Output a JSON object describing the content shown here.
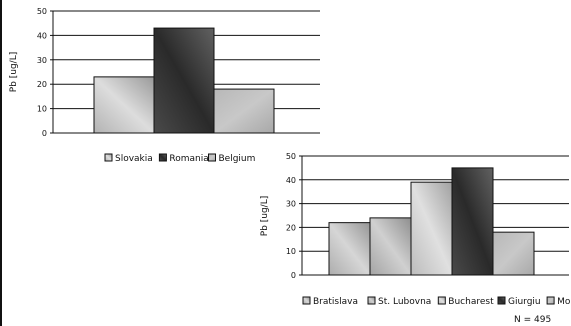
{
  "colors": {
    "grid": "#111111",
    "text": "#111111",
    "background": "#ffffff"
  },
  "chart_data": [
    {
      "type": "bar",
      "categories": [
        "Slovakia",
        "Romania",
        "Belgium"
      ],
      "values": [
        23,
        43,
        18
      ],
      "title": "",
      "xlabel": "",
      "ylabel": "Pb [ug/L]",
      "ylim": [
        0,
        50
      ],
      "yticks": [
        0,
        10,
        20,
        30,
        40,
        50
      ],
      "grid": true,
      "legend": {
        "position": "bottom-center",
        "entries": [
          "Slovakia",
          "Romania",
          "Belgium"
        ]
      }
    },
    {
      "type": "bar",
      "categories": [
        "Bratislava",
        "St. Lubovna",
        "Bucharest",
        "Giurgiu",
        "Mol"
      ],
      "values": [
        22,
        24,
        39,
        45,
        18
      ],
      "title": "",
      "xlabel": "",
      "ylabel": "Pb [ug/L]",
      "ylim": [
        0,
        50
      ],
      "yticks": [
        0,
        10,
        20,
        30,
        40,
        50
      ],
      "grid": true,
      "legend": {
        "position": "bottom-center",
        "entries": [
          "Bratislava",
          "St. Lubovna",
          "Bucharest",
          "Giurgiu",
          "Mol"
        ]
      },
      "note": "N = 495"
    }
  ]
}
